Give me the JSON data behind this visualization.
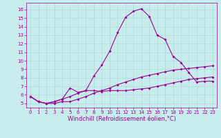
{
  "xlabel": "Windchill (Refroidissement éolien,°C)",
  "background_color": "#c8ecec",
  "grid_color": "#aed8d8",
  "line_color": "#990099",
  "xlim": [
    -0.5,
    23.5
  ],
  "ylim": [
    4.5,
    16.8
  ],
  "xticks": [
    0,
    1,
    2,
    3,
    4,
    5,
    6,
    7,
    8,
    9,
    10,
    11,
    12,
    13,
    14,
    15,
    16,
    17,
    18,
    19,
    20,
    21,
    22,
    23
  ],
  "yticks": [
    5,
    6,
    7,
    8,
    9,
    10,
    11,
    12,
    13,
    14,
    15,
    16
  ],
  "line1_x": [
    0,
    1,
    2,
    3,
    4,
    5,
    6,
    7,
    8,
    9,
    10,
    11,
    12,
    13,
    14,
    15,
    16,
    17,
    18,
    19,
    20,
    21,
    22,
    23
  ],
  "line1_y": [
    5.8,
    5.2,
    5.0,
    5.0,
    5.2,
    5.2,
    5.5,
    5.8,
    6.2,
    6.5,
    6.8,
    7.2,
    7.5,
    7.8,
    8.1,
    8.3,
    8.5,
    8.7,
    8.9,
    9.0,
    9.1,
    9.2,
    9.3,
    9.4
  ],
  "line2_x": [
    0,
    1,
    2,
    3,
    4,
    5,
    6,
    7,
    8,
    9,
    10,
    11,
    12,
    13,
    14,
    15,
    16,
    17,
    18,
    19,
    20,
    21,
    22,
    23
  ],
  "line2_y": [
    5.8,
    5.2,
    5.0,
    5.2,
    5.5,
    5.8,
    6.2,
    6.5,
    6.5,
    6.4,
    6.5,
    6.5,
    6.5,
    6.6,
    6.7,
    6.8,
    7.0,
    7.2,
    7.4,
    7.6,
    7.8,
    7.9,
    8.0,
    8.1
  ],
  "line3_x": [
    0,
    1,
    2,
    3,
    4,
    5,
    6,
    7,
    8,
    9,
    10,
    11,
    12,
    13,
    14,
    15,
    16,
    17,
    18,
    19,
    20,
    21,
    22,
    23
  ],
  "line3_y": [
    5.8,
    5.2,
    5.0,
    5.2,
    5.5,
    6.8,
    6.3,
    6.5,
    8.2,
    9.5,
    11.1,
    13.3,
    15.1,
    15.8,
    16.1,
    15.2,
    13.0,
    12.5,
    10.5,
    9.8,
    8.6,
    7.5,
    7.6,
    7.6
  ],
  "marker_size": 2,
  "line_width": 0.8,
  "tick_fontsize": 5,
  "xlabel_fontsize": 6
}
